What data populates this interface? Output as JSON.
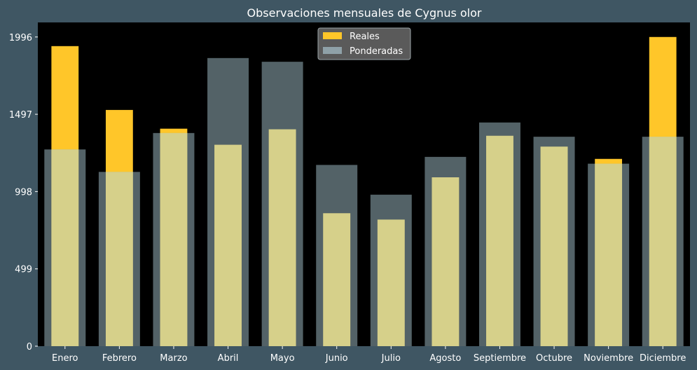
{
  "chart_data": {
    "type": "bar",
    "title": "Observaciones mensuales de Cygnus olor",
    "xlabel": "",
    "ylabel": "",
    "categories": [
      "Enero",
      "Febrero",
      "Marzo",
      "Abril",
      "Mayo",
      "Junio",
      "Julio",
      "Agosto",
      "Septiembre",
      "Octubre",
      "Noviembre",
      "Diciembre"
    ],
    "series": [
      {
        "name": "Reales",
        "color": "#ffc629",
        "values": [
          1937,
          1525,
          1404,
          1300,
          1400,
          858,
          817,
          1090,
          1358,
          1288,
          1209,
          1996
        ]
      },
      {
        "name": "Ponderadas",
        "color": "#8fa1a8",
        "values": [
          1270,
          1125,
          1376,
          1860,
          1836,
          1170,
          978,
          1222,
          1444,
          1352,
          1178,
          1352
        ]
      }
    ],
    "overlap_color": "#d6d08a",
    "yticks": [
      0,
      499,
      998,
      1497,
      1996
    ],
    "ylim": [
      0,
      2090
    ],
    "legend_position": "top-center",
    "grid": false,
    "plot_background": "#000000",
    "figure_background": "#3f5663"
  }
}
